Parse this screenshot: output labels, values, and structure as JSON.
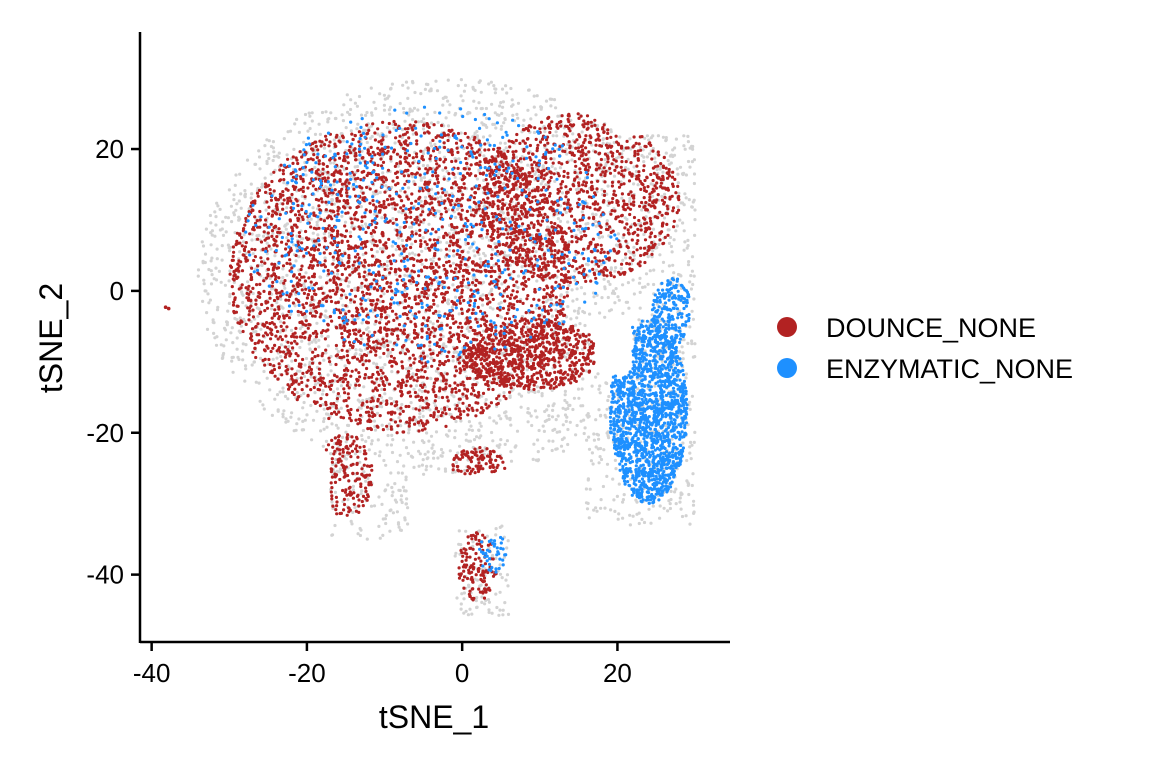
{
  "chart_data": {
    "type": "scatter",
    "title": "",
    "xlabel": "tSNE_1",
    "ylabel": "tSNE_2",
    "xlim": [
      -41.5,
      34.5
    ],
    "ylim": [
      -49.5,
      36.5
    ],
    "x_ticks": [
      -40,
      -20,
      0,
      20
    ],
    "x_tick_labels": [
      "-40",
      "-20",
      "0",
      "20"
    ],
    "y_ticks": [
      -40,
      -20,
      0,
      20
    ],
    "y_tick_labels": [
      "-40",
      "-20",
      "0",
      "20"
    ],
    "grid": false,
    "legend_position": "right",
    "background_color": "#d3d3d3",
    "series": [
      {
        "name": "DOUNCE_NONE",
        "color": "#b22222",
        "regions": [
          {
            "cx": -8,
            "cy": 2,
            "rx": 22,
            "ry": 22,
            "n": 3400
          },
          {
            "cx": 15,
            "cy": 13,
            "rx": 13,
            "ry": 12,
            "n": 1100
          },
          {
            "cx": 9,
            "cy": -9,
            "rx": 9,
            "ry": 5,
            "n": 650
          },
          {
            "cx": -15,
            "cy": -26,
            "rx": 3.5,
            "ry": 6,
            "n": 160
          },
          {
            "cx": 2,
            "cy": -25,
            "rx": 3.5,
            "ry": 3,
            "n": 90
          },
          {
            "cx": 2,
            "cy": -39,
            "rx": 2.5,
            "ry": 5,
            "n": 120
          }
        ],
        "points": [
          [
            -38.2,
            -2.3
          ],
          [
            -37.8,
            -2.5
          ]
        ]
      },
      {
        "name": "ENZYMATIC_NONE",
        "color": "#1e90ff",
        "regions": [
          {
            "cx": 24,
            "cy": -17,
            "rx": 5,
            "ry": 13,
            "n": 1500
          },
          {
            "cx": 27,
            "cy": -3,
            "rx": 2.5,
            "ry": 5,
            "n": 180
          },
          {
            "cx": -4,
            "cy": 8,
            "rx": 24,
            "ry": 18,
            "n": 520
          },
          {
            "cx": 4,
            "cy": -37,
            "rx": 1.8,
            "ry": 3,
            "n": 40
          }
        ]
      }
    ]
  }
}
